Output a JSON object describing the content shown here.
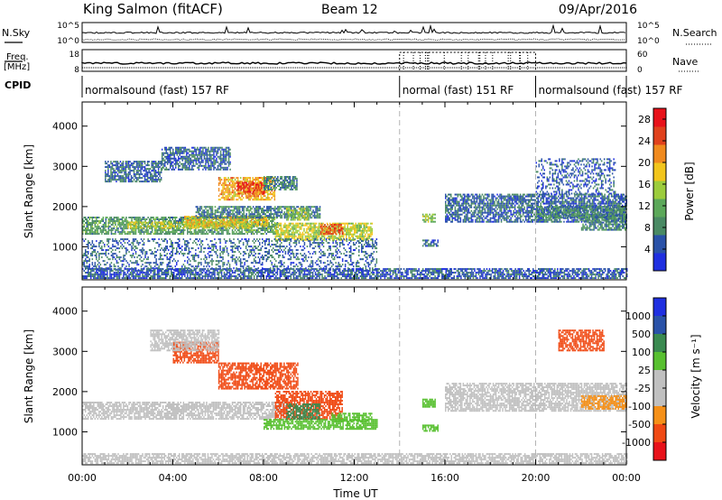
{
  "header": {
    "station": "King Salmon (fitACF)",
    "beam": "Beam 12",
    "date": "09/Apr/2016"
  },
  "strips": {
    "nsky_label": "N.Sky",
    "nsearch_label": "N.Search",
    "noise_ticks": [
      "10^5",
      "10^0"
    ],
    "freq_label_1": "Freq.",
    "freq_label_2": "[MHz]",
    "freq_ticks": [
      "18",
      "8"
    ],
    "nave_label": "Nave",
    "nave_ticks": [
      "60",
      "0"
    ],
    "cpid_label": "CPID"
  },
  "cpid_segments": [
    {
      "label": "normalsound (fast) 157 RF",
      "start": 0,
      "end": 14
    },
    {
      "label": "normal (fast) 151 RF",
      "start": 14,
      "end": 20
    },
    {
      "label": "normalsound (fast) 157 RF",
      "start": 20,
      "end": 24
    }
  ],
  "colors": {
    "power": [
      "#1f2fe0",
      "#2a52a8",
      "#4a8a64",
      "#5ca85a",
      "#9ccc3c",
      "#f2c51c",
      "#f08a1e",
      "#e0411c",
      "#e8121a"
    ],
    "velocity": [
      "#e8121a",
      "#f04a14",
      "#f59018",
      "#c0c0c0",
      "#c0c0c0",
      "#58c030",
      "#3a8a50",
      "#2a52a8",
      "#1f2fe0"
    ]
  },
  "chart_data": [
    {
      "type": "heatmap",
      "panel": "power",
      "ylabel": "Slant Range [km]",
      "yticks": [
        1000,
        2000,
        3000,
        4000
      ],
      "ylim": [
        180,
        4600
      ],
      "xlim": [
        0,
        24
      ],
      "colorbar_label": "Power [dB]",
      "colorbar_ticks": [
        4,
        8,
        12,
        16,
        20,
        24,
        28
      ],
      "colorbar_range": [
        0,
        30
      ],
      "regions": [
        {
          "t0": 0,
          "t1": 8.6,
          "r0": 1300,
          "r1": 1750,
          "value": 10
        },
        {
          "t0": 2,
          "t1": 7.5,
          "r0": 1450,
          "r1": 1600,
          "value": 16
        },
        {
          "t0": 4.5,
          "t1": 8.2,
          "r0": 1500,
          "r1": 1750,
          "value": 18
        },
        {
          "t0": 5,
          "t1": 10.5,
          "r0": 1700,
          "r1": 2000,
          "value": 8
        },
        {
          "t0": 6,
          "t1": 8.5,
          "r0": 2150,
          "r1": 2700,
          "value": 20
        },
        {
          "t0": 6.8,
          "t1": 8,
          "r0": 2300,
          "r1": 2600,
          "value": 26
        },
        {
          "t0": 8.5,
          "t1": 12.8,
          "r0": 1150,
          "r1": 1600,
          "value": 16
        },
        {
          "t0": 10.5,
          "t1": 11.5,
          "r0": 1300,
          "r1": 1550,
          "value": 24
        },
        {
          "t0": 9,
          "t1": 10,
          "r0": 1650,
          "r1": 1950,
          "value": 14
        },
        {
          "t0": 3.5,
          "t1": 6.5,
          "r0": 2900,
          "r1": 3450,
          "value": 6
        },
        {
          "t0": 1,
          "t1": 3.5,
          "r0": 2600,
          "r1": 3100,
          "value": 6
        },
        {
          "t0": 8,
          "t1": 9.5,
          "r0": 2400,
          "r1": 2750,
          "value": 8
        },
        {
          "t0": 15,
          "t1": 15.6,
          "r0": 1600,
          "r1": 1800,
          "value": 14
        },
        {
          "t0": 15,
          "t1": 15.7,
          "r0": 1000,
          "r1": 1150,
          "value": 6
        },
        {
          "t0": 16,
          "t1": 24,
          "r0": 1600,
          "r1": 2300,
          "value": 6
        },
        {
          "t0": 20,
          "t1": 24,
          "r0": 1700,
          "r1": 2000,
          "value": 8
        },
        {
          "t0": 22,
          "t1": 24,
          "r0": 1400,
          "r1": 1800,
          "value": 8
        },
        {
          "t0": 20,
          "t1": 23.5,
          "r0": 2300,
          "r1": 3200,
          "value": 5
        },
        {
          "t0": 0,
          "t1": 24,
          "r0": 200,
          "r1": 450,
          "value": 5
        },
        {
          "t0": 0,
          "t1": 13,
          "r0": 400,
          "r1": 1200,
          "value": 6
        }
      ]
    },
    {
      "type": "heatmap",
      "panel": "velocity",
      "ylabel": "Slant Range [km]",
      "yticks": [
        1000,
        2000,
        3000,
        4000
      ],
      "ylim": [
        180,
        4600
      ],
      "xlim": [
        0,
        24
      ],
      "xticks": [
        "00:00",
        "04:00",
        "08:00",
        "12:00",
        "16:00",
        "20:00",
        "00:00"
      ],
      "xlabel": "Time UT",
      "colorbar_label": "Velocity [m s⁻¹]",
      "colorbar_ticks": [
        1000,
        500,
        100,
        25,
        -25,
        -100,
        -500,
        -1000
      ],
      "regions": [
        {
          "t0": 0,
          "t1": 9,
          "r0": 1300,
          "r1": 1750,
          "value": 0
        },
        {
          "t0": 6,
          "t1": 9.5,
          "r0": 2050,
          "r1": 2700,
          "value": -300
        },
        {
          "t0": 4,
          "t1": 6,
          "r0": 2700,
          "r1": 3200,
          "value": -300
        },
        {
          "t0": 8.5,
          "t1": 11.5,
          "r0": 1300,
          "r1": 2000,
          "value": -300
        },
        {
          "t0": 8,
          "t1": 13,
          "r0": 1050,
          "r1": 1300,
          "value": 60
        },
        {
          "t0": 9,
          "t1": 10.5,
          "r0": 1300,
          "r1": 1700,
          "value": 300
        },
        {
          "t0": 11,
          "t1": 12.8,
          "r0": 1250,
          "r1": 1450,
          "value": 60
        },
        {
          "t0": 3,
          "t1": 6,
          "r0": 3000,
          "r1": 3500,
          "value": 0
        },
        {
          "t0": 15,
          "t1": 15.7,
          "r0": 1000,
          "r1": 1150,
          "value": 60
        },
        {
          "t0": 15,
          "t1": 15.6,
          "r0": 1600,
          "r1": 1800,
          "value": 60
        },
        {
          "t0": 16,
          "t1": 24,
          "r0": 1500,
          "r1": 2200,
          "value": 0
        },
        {
          "t0": 22,
          "t1": 24,
          "r0": 1550,
          "r1": 1900,
          "value": -60
        },
        {
          "t0": 21,
          "t1": 23,
          "r0": 3000,
          "r1": 3500,
          "value": -300
        },
        {
          "t0": 0,
          "t1": 24,
          "r0": 200,
          "r1": 450,
          "value": 0
        }
      ]
    }
  ]
}
